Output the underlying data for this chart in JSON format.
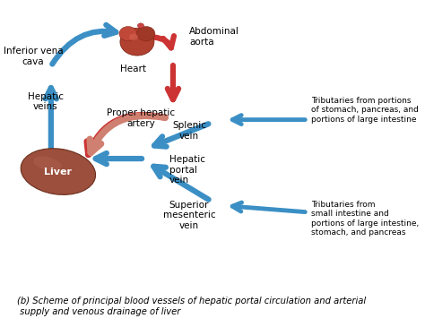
{
  "background_color": "#ffffff",
  "caption": "(b) Scheme of principal blood vessels of hepatic portal circulation and arterial\n supply and venous drainage of liver",
  "caption_fontsize": 7.2,
  "blue_color": "#3b8fc4",
  "red_color": "#cc3333",
  "salmon_color": "#d08070",
  "text_color": "#000000",
  "label_fontsize": 7.5,
  "labels": {
    "inferior_vena_cava": "Inferior vena\ncava",
    "heart": "Heart",
    "abdominal_aorta": "Abdominal\naorta",
    "hepatic_veins": "Hepatic\nveins",
    "proper_hepatic_artery": "Proper hepatic\nartery",
    "liver": "Liver",
    "splenic_vein": "Splenic\nvein",
    "hepatic_portal_vein": "Hepatic\nportal\nvein",
    "superior_mesenteric_vein": "Superior\nmesenteric\nvein",
    "tributaries1": "Tributaries from portions\nof stomach, pancreas, and\nportions of large intestine",
    "tributaries2": "Tributaries from\nsmall intestine and\nportions of large intestine,\nstomach, and pancreas"
  }
}
